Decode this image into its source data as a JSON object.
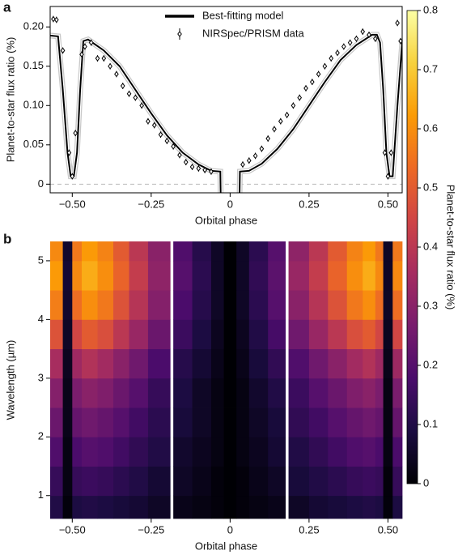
{
  "chart_data": [
    {
      "type": "line",
      "panel": "a",
      "xlabel": "Orbital phase",
      "ylabel": "Planet-to-star flux ratio (%)",
      "xlim": [
        -0.57,
        0.545
      ],
      "ylim": [
        -0.011,
        0.226
      ],
      "xticks": [
        {
          "value": -0.5,
          "label": "−0.50"
        },
        {
          "value": -0.25,
          "label": "−0.25"
        },
        0,
        0.25,
        {
          "value": 0.5,
          "label": "0.50"
        }
      ],
      "yticks": [
        0,
        0.05,
        {
          "value": 0.1,
          "label": "0.10"
        },
        0.15,
        {
          "value": 0.2,
          "label": "0.20"
        }
      ],
      "series": [
        {
          "name": "Best-fitting model",
          "type": "line",
          "color": "#000000",
          "x": [
            -0.57,
            -0.545,
            -0.53,
            -0.515,
            -0.505,
            -0.495,
            -0.485,
            -0.475,
            -0.465,
            -0.45,
            -0.4,
            -0.35,
            -0.3,
            -0.25,
            -0.2,
            -0.15,
            -0.1,
            -0.06,
            -0.031,
            -0.03,
            0,
            0.03,
            0.031,
            0.06,
            0.1,
            0.15,
            0.2,
            0.25,
            0.3,
            0.35,
            0.4,
            0.45,
            0.465,
            0.475,
            0.485,
            0.495,
            0.505,
            0.515,
            0.53,
            0.545
          ],
          "values": [
            0.189,
            0.188,
            0.12,
            0.04,
            0.01,
            0.01,
            0.04,
            0.12,
            0.182,
            0.184,
            0.17,
            0.15,
            0.12,
            0.09,
            0.062,
            0.04,
            0.025,
            0.017,
            0.016,
            -0.011,
            null,
            -0.011,
            0.016,
            0.017,
            0.026,
            0.045,
            0.07,
            0.1,
            0.13,
            0.158,
            0.177,
            0.19,
            0.19,
            0.18,
            0.12,
            0.04,
            0.01,
            0.01,
            0.1,
            0.18
          ]
        },
        {
          "name": "NIRSpec/PRISM data",
          "type": "scatter",
          "color": "#000000",
          "error": 0.004,
          "x": [
            -0.56,
            -0.55,
            -0.53,
            -0.51,
            -0.5,
            -0.49,
            -0.47,
            -0.46,
            -0.44,
            -0.42,
            -0.4,
            -0.38,
            -0.36,
            -0.34,
            -0.32,
            -0.3,
            -0.28,
            -0.26,
            -0.24,
            -0.22,
            -0.2,
            -0.18,
            -0.16,
            -0.14,
            -0.12,
            -0.1,
            -0.08,
            -0.06,
            0.04,
            0.06,
            0.08,
            0.1,
            0.12,
            0.14,
            0.16,
            0.18,
            0.2,
            0.22,
            0.24,
            0.26,
            0.28,
            0.3,
            0.32,
            0.34,
            0.36,
            0.38,
            0.4,
            0.42,
            0.44,
            0.46,
            0.49,
            0.5,
            0.51,
            0.53,
            0.54
          ],
          "values": [
            0.21,
            0.209,
            0.17,
            0.04,
            0.01,
            0.065,
            0.165,
            0.175,
            0.18,
            0.16,
            0.16,
            0.15,
            0.14,
            0.125,
            0.115,
            0.11,
            0.1,
            0.08,
            0.075,
            0.063,
            0.055,
            0.048,
            0.037,
            0.028,
            0.022,
            0.02,
            0.018,
            0.016,
            0.025,
            0.03,
            0.036,
            0.045,
            0.058,
            0.07,
            0.08,
            0.088,
            0.1,
            0.11,
            0.122,
            0.13,
            0.14,
            0.15,
            0.16,
            0.167,
            0.175,
            0.18,
            0.185,
            0.194,
            0.19,
            0.185,
            0.04,
            0.01,
            0.04,
            0.205,
            0.182
          ]
        }
      ]
    },
    {
      "type": "heatmap",
      "panel": "b",
      "xlabel": "Orbital phase",
      "ylabel": "Wavelength (µm)",
      "colorbar_label": "Planet-to-star flux ratio (%)",
      "xlim": [
        -0.57,
        0.545
      ],
      "ylim": [
        0.61,
        5.33
      ],
      "xticks": [
        {
          "value": -0.5,
          "label": "−0.50"
        },
        {
          "value": -0.25,
          "label": "−0.25"
        },
        0,
        0.25,
        {
          "value": 0.5,
          "label": "0.50"
        }
      ],
      "yticks": [
        1,
        2,
        3,
        4,
        5
      ],
      "zlim": [
        0,
        0.8
      ],
      "zticks": [
        0,
        0.1,
        0.2,
        0.3,
        0.4,
        0.5,
        0.6,
        0.7,
        0.8
      ],
      "colorscale": [
        "#000004",
        "#1b0c41",
        "#4a0c6b",
        "#781c6d",
        "#a52c60",
        "#cf4446",
        "#ed6925",
        "#fb9b06",
        "#f7d13d",
        "#fcffa4"
      ],
      "xbins": [
        -0.57,
        -0.53,
        -0.5,
        -0.47,
        -0.42,
        -0.37,
        -0.32,
        -0.26,
        -0.19,
        -0.18,
        -0.12,
        -0.06,
        -0.02,
        0.02,
        0.06,
        0.12,
        0.175,
        0.185,
        0.25,
        0.31,
        0.37,
        0.42,
        0.46,
        0.485,
        0.515,
        0.545
      ],
      "ybins": [
        0.61,
        1.0,
        1.5,
        2.0,
        2.5,
        3.0,
        3.5,
        4.0,
        4.5,
        5.0,
        5.33
      ],
      "z": [
        [
          0.1,
          0.01,
          0.09,
          0.1,
          0.09,
          0.08,
          0.07,
          0.05,
          null,
          0.03,
          0.02,
          0.01,
          0,
          0.01,
          0.02,
          0.03,
          null,
          0.05,
          0.07,
          0.08,
          0.09,
          0.1,
          0.09,
          0.01,
          0.09
        ],
        [
          0.14,
          0.02,
          0.14,
          0.15,
          0.14,
          0.12,
          0.1,
          0.07,
          null,
          0.05,
          0.03,
          0.01,
          0,
          0.01,
          0.03,
          0.05,
          null,
          0.08,
          0.1,
          0.12,
          0.14,
          0.15,
          0.14,
          0.01,
          0.14
        ],
        [
          0.19,
          0.02,
          0.18,
          0.2,
          0.19,
          0.16,
          0.13,
          0.1,
          null,
          0.06,
          0.04,
          0.02,
          0,
          0.02,
          0.04,
          0.07,
          null,
          0.1,
          0.13,
          0.16,
          0.19,
          0.2,
          0.18,
          0.02,
          0.18
        ],
        [
          0.24,
          0.03,
          0.23,
          0.25,
          0.23,
          0.2,
          0.16,
          0.12,
          null,
          0.08,
          0.05,
          0.02,
          0,
          0.02,
          0.05,
          0.08,
          null,
          0.13,
          0.16,
          0.2,
          0.23,
          0.25,
          0.23,
          0.02,
          0.23
        ],
        [
          0.29,
          0.03,
          0.27,
          0.3,
          0.28,
          0.24,
          0.2,
          0.14,
          null,
          0.09,
          0.05,
          0.02,
          0,
          0.02,
          0.06,
          0.1,
          null,
          0.15,
          0.2,
          0.24,
          0.28,
          0.3,
          0.27,
          0.02,
          0.27
        ],
        [
          0.36,
          0.04,
          0.34,
          0.38,
          0.35,
          0.3,
          0.25,
          0.18,
          null,
          0.11,
          0.07,
          0.03,
          0,
          0.03,
          0.08,
          0.13,
          null,
          0.19,
          0.25,
          0.3,
          0.35,
          0.38,
          0.34,
          0.03,
          0.34
        ],
        [
          0.48,
          0.05,
          0.45,
          0.5,
          0.47,
          0.4,
          0.33,
          0.24,
          null,
          0.15,
          0.09,
          0.04,
          0,
          0.04,
          0.1,
          0.17,
          null,
          0.25,
          0.33,
          0.4,
          0.47,
          0.5,
          0.45,
          0.04,
          0.45
        ],
        [
          0.57,
          0.06,
          0.54,
          0.6,
          0.56,
          0.48,
          0.39,
          0.29,
          null,
          0.18,
          0.11,
          0.05,
          0,
          0.05,
          0.12,
          0.2,
          null,
          0.3,
          0.39,
          0.48,
          0.56,
          0.6,
          0.54,
          0.05,
          0.54
        ],
        [
          0.62,
          0.07,
          0.59,
          0.65,
          0.6,
          0.52,
          0.42,
          0.31,
          null,
          0.2,
          0.12,
          0.05,
          0,
          0.05,
          0.13,
          0.21,
          null,
          0.33,
          0.42,
          0.52,
          0.6,
          0.65,
          0.59,
          0.05,
          0.59
        ],
        [
          0.59,
          0.06,
          0.56,
          0.62,
          0.58,
          0.5,
          0.4,
          0.3,
          null,
          0.19,
          0.11,
          0.05,
          0,
          0.05,
          0.12,
          0.2,
          null,
          0.31,
          0.4,
          0.5,
          0.58,
          0.62,
          0.56,
          0.05,
          0.56
        ]
      ]
    }
  ]
}
